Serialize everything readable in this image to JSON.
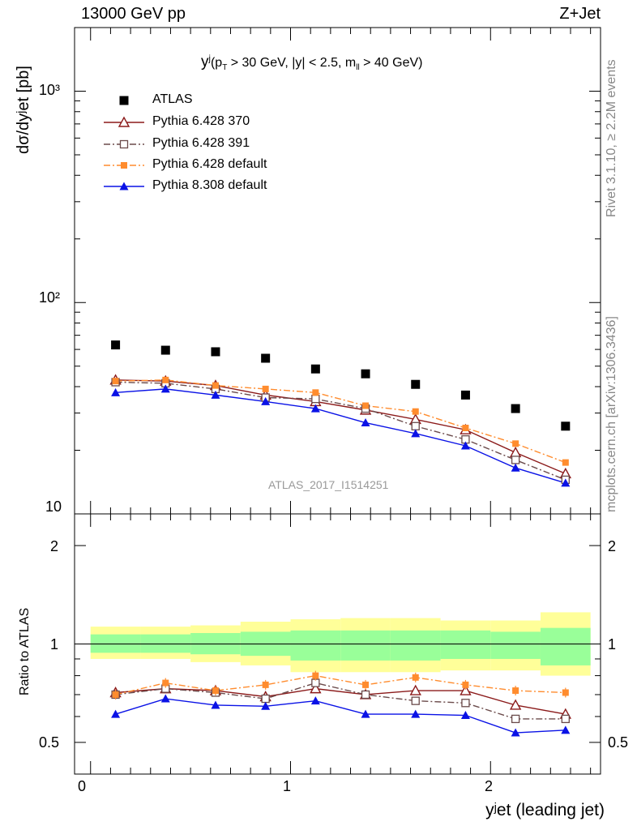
{
  "header": {
    "left": "13000 GeV pp",
    "right": "Z+Jet"
  },
  "side_labels": {
    "rivet": "Rivet 3.1.10, ≥ 2.2M events",
    "mcplots": "mcplots.cern.ch [arXiv:1306.3436]"
  },
  "plot_title": {
    "main": "y",
    "sup": "j",
    "cuts_a": "(p",
    "cuts_sub": "T",
    "cuts_b": " > 30 GeV, |y| < 2.5, m",
    "cuts_sub2": "ll",
    "cuts_c": " > 40 GeV)"
  },
  "watermark": "ATLAS_2017_I1514251",
  "axis_labels": {
    "y_main": "dσ/dyʲet [pb]",
    "y_ratio": "Ratio to ATLAS",
    "x": "yʲet (leading jet)"
  },
  "ticks": {
    "main_y": [
      "10",
      "10²",
      "10³"
    ],
    "ratio_y": [
      "0.5",
      "1",
      "2"
    ],
    "x": [
      "0",
      "1",
      "2"
    ]
  },
  "legend": [
    {
      "label": "ATLAS"
    },
    {
      "label": "Pythia 6.428 370"
    },
    {
      "label": "Pythia 6.428 391"
    },
    {
      "label": "Pythia 6.428 default"
    },
    {
      "label": "Pythia 8.308 default"
    }
  ],
  "colors": {
    "atlas": "#000000",
    "p370": "#8b1a1a",
    "p391": "#6b4b4b",
    "pdefault": "#ff8c2e",
    "p8": "#0a12e6",
    "band_outer": "#ffff99",
    "band_inner": "#99ff99"
  },
  "chart_data": {
    "type": "scatter",
    "x_bins": [
      [
        0,
        0.25
      ],
      [
        0.25,
        0.5
      ],
      [
        0.5,
        0.75
      ],
      [
        0.75,
        1.0
      ],
      [
        1.0,
        1.25
      ],
      [
        1.25,
        1.5
      ],
      [
        1.5,
        1.75
      ],
      [
        1.75,
        2.0
      ],
      [
        2.0,
        2.25
      ],
      [
        2.25,
        2.5
      ]
    ],
    "x": [
      0.125,
      0.375,
      0.625,
      0.875,
      1.125,
      1.375,
      1.625,
      1.875,
      2.125,
      2.375
    ],
    "xlim": [
      -0.08,
      2.55
    ],
    "main_ylim": [
      10,
      2000
    ],
    "main_yscale": "log",
    "ratio_ylim": [
      0.4,
      2.5
    ],
    "ratio_yscale": "log",
    "series": [
      {
        "name": "ATLAS",
        "values": [
          63,
          59.5,
          58.5,
          54.5,
          48.5,
          46,
          41,
          36.5,
          31.5,
          26
        ],
        "marker": "square",
        "line": "none"
      },
      {
        "name": "Pythia 6.428 370",
        "values": [
          43,
          42.5,
          40.5,
          36.5,
          34,
          31,
          28,
          25,
          19.5,
          15.5
        ],
        "marker": "open-triangle",
        "line": "solid"
      },
      {
        "name": "Pythia 6.428 391",
        "values": [
          42,
          41.5,
          39,
          35.5,
          35,
          31.5,
          26,
          22.5,
          18,
          14.5
        ],
        "marker": "open-square",
        "line": "dashdot"
      },
      {
        "name": "Pythia 6.428 default",
        "values": [
          42.5,
          43,
          40.5,
          39,
          37.5,
          32.5,
          30.5,
          25.5,
          21.5,
          17.5
        ],
        "marker": "filled-square",
        "line": "dashdot"
      },
      {
        "name": "Pythia 8.308 default",
        "values": [
          37.5,
          39,
          36.5,
          34,
          31.5,
          27,
          24,
          21,
          16.5,
          14
        ],
        "marker": "filled-triangle",
        "line": "solid"
      }
    ],
    "ratio_series": [
      {
        "name": "Pythia 6.428 370",
        "values": [
          0.71,
          0.73,
          0.72,
          0.69,
          0.73,
          0.7,
          0.72,
          0.72,
          0.65,
          0.61
        ]
      },
      {
        "name": "Pythia 6.428 391",
        "values": [
          0.7,
          0.73,
          0.71,
          0.68,
          0.76,
          0.7,
          0.67,
          0.66,
          0.59,
          0.59
        ]
      },
      {
        "name": "Pythia 6.428 default",
        "values": [
          0.7,
          0.76,
          0.72,
          0.75,
          0.8,
          0.75,
          0.79,
          0.75,
          0.72,
          0.71
        ]
      },
      {
        "name": "Pythia 8.308 default",
        "values": [
          0.61,
          0.68,
          0.65,
          0.645,
          0.67,
          0.61,
          0.61,
          0.605,
          0.535,
          0.545
        ]
      }
    ],
    "band_outer": {
      "lo": [
        0.9,
        0.9,
        0.88,
        0.86,
        0.82,
        0.82,
        0.82,
        0.83,
        0.83,
        0.8
      ],
      "hi": [
        1.13,
        1.13,
        1.14,
        1.17,
        1.19,
        1.2,
        1.2,
        1.18,
        1.18,
        1.25
      ]
    },
    "band_inner": {
      "lo": [
        0.94,
        0.94,
        0.93,
        0.92,
        0.89,
        0.89,
        0.89,
        0.9,
        0.9,
        0.86
      ],
      "hi": [
        1.07,
        1.07,
        1.08,
        1.09,
        1.1,
        1.1,
        1.1,
        1.1,
        1.09,
        1.12
      ]
    }
  }
}
